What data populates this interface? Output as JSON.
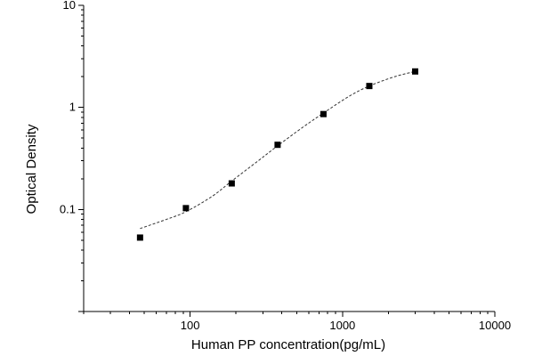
{
  "chart_data": {
    "type": "scatter",
    "title": "",
    "xlabel": "Human PP concentration(pg/mL)",
    "ylabel": "Optical Density",
    "x_scale": "log",
    "y_scale": "log",
    "xlim": [
      20,
      10000
    ],
    "ylim": [
      0.01,
      10
    ],
    "x_ticks": [
      100,
      1000,
      10000
    ],
    "x_tick_labels": [
      "100",
      "1000",
      "10000"
    ],
    "y_ticks": [
      0.1,
      1,
      10
    ],
    "y_tick_labels": [
      "0.1",
      "1",
      "10"
    ],
    "grid": false,
    "legend": "none",
    "series": [
      {
        "marker": "square",
        "color": "#000000",
        "x": [
          46.9,
          93.8,
          187.5,
          375,
          750,
          1500,
          3000
        ],
        "y": [
          0.053,
          0.103,
          0.18,
          0.43,
          0.86,
          1.62,
          2.25
        ]
      }
    ],
    "fit_curve": {
      "style": "dashed",
      "color": "#333333",
      "x": [
        46.9,
        70,
        93.8,
        140,
        187.5,
        280,
        375,
        550,
        750,
        1100,
        1500,
        2200,
        3000
      ],
      "y": [
        0.065,
        0.08,
        0.095,
        0.135,
        0.19,
        0.3,
        0.42,
        0.64,
        0.88,
        1.28,
        1.62,
        2.0,
        2.25
      ]
    }
  }
}
